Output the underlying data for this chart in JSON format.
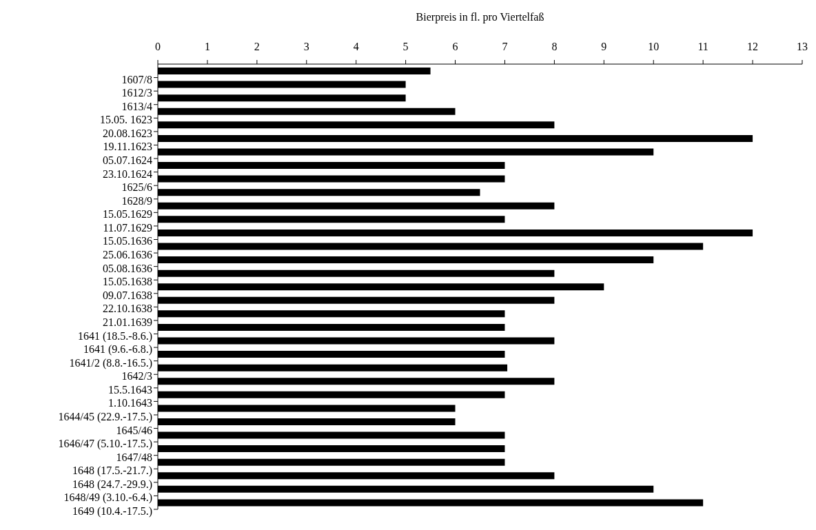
{
  "chart_data": {
    "type": "bar",
    "orientation": "horizontal",
    "xlabel": "Bierpreis in fl. pro Viertelfaß",
    "categories": [
      "1607/8",
      "1612/3",
      "1613/4",
      "15.05. 1623",
      "20.08.1623",
      "19.11.1623",
      "05.07.1624",
      "23.10.1624",
      "1625/6",
      "1628/9",
      "15.05.1629",
      "11.07.1629",
      "15.05.1636",
      "25.06.1636",
      "05.08.1636",
      "15.05.1638",
      "09.07.1638",
      "22.10.1638",
      "21.01.1639",
      "1641 (18.5.-8.6.)",
      "1641 (9.6.-6.8.)",
      "1641/2 (8.8.-16.5.)",
      "1642/3",
      "15.5.1643",
      "1.10.1643",
      "1644/45 (22.9.-17.5.)",
      "1645/46",
      "1646/47 (5.10.-17.5.)",
      "1647/48",
      "1648 (17.5.-21.7.)",
      "1648 (24.7.-29.9.)",
      "1648/49 (3.10.-6.4.)",
      "1649 (10.4.-17.5.)"
    ],
    "values": [
      5.5,
      5,
      5,
      6,
      8,
      12,
      10,
      7,
      7,
      6.5,
      8,
      7,
      12,
      11,
      10,
      8,
      9,
      8,
      7,
      7,
      8,
      7,
      7.05,
      8,
      7,
      6,
      6,
      7,
      7,
      7,
      8,
      10,
      11
    ],
    "color": "#000000",
    "xlim": [
      0,
      13
    ],
    "xticks": [
      0,
      1,
      2,
      3,
      4,
      5,
      6,
      7,
      8,
      9,
      10,
      11,
      12,
      13
    ],
    "grid": false,
    "legend": false
  }
}
